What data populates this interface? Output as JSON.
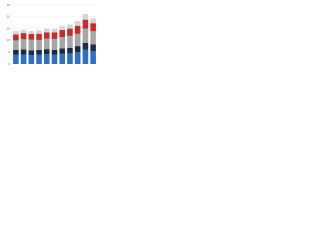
{
  "chart_data": {
    "type": "stacked_bar",
    "categories": [
      null,
      null,
      null,
      null,
      null,
      null,
      null,
      null,
      null,
      null,
      null
    ],
    "series": [
      {
        "name": null,
        "color": "#2f6fc6",
        "values": [
          4,
          4,
          3.8,
          4,
          4.2,
          4,
          4.3,
          4.5,
          5,
          6,
          5.5
        ]
      },
      {
        "name": null,
        "color": "#1c2b49",
        "values": [
          2,
          2.2,
          2,
          2,
          2.1,
          2,
          2.3,
          2.4,
          2.6,
          3,
          2.8
        ]
      },
      {
        "name": null,
        "color": "#a6a6a6",
        "values": [
          4,
          4.3,
          4.5,
          4.2,
          4.4,
          4.6,
          4.8,
          5,
          5.2,
          6,
          5.6
        ]
      },
      {
        "name": null,
        "color": "#c62b2d",
        "values": [
          2.5,
          2.6,
          2.4,
          2.6,
          2.7,
          2.8,
          3,
          3.1,
          3.4,
          3.8,
          3.4
        ]
      },
      {
        "name": null,
        "color": "#d5d5d5",
        "values": [
          1.5,
          1.4,
          1.3,
          1.5,
          1.6,
          1.5,
          1.6,
          1.7,
          2,
          2.4,
          2
        ]
      }
    ],
    "ylim": [
      0,
      25
    ],
    "yticks": [
      0,
      5,
      10,
      15,
      20,
      25
    ],
    "grid": true
  }
}
